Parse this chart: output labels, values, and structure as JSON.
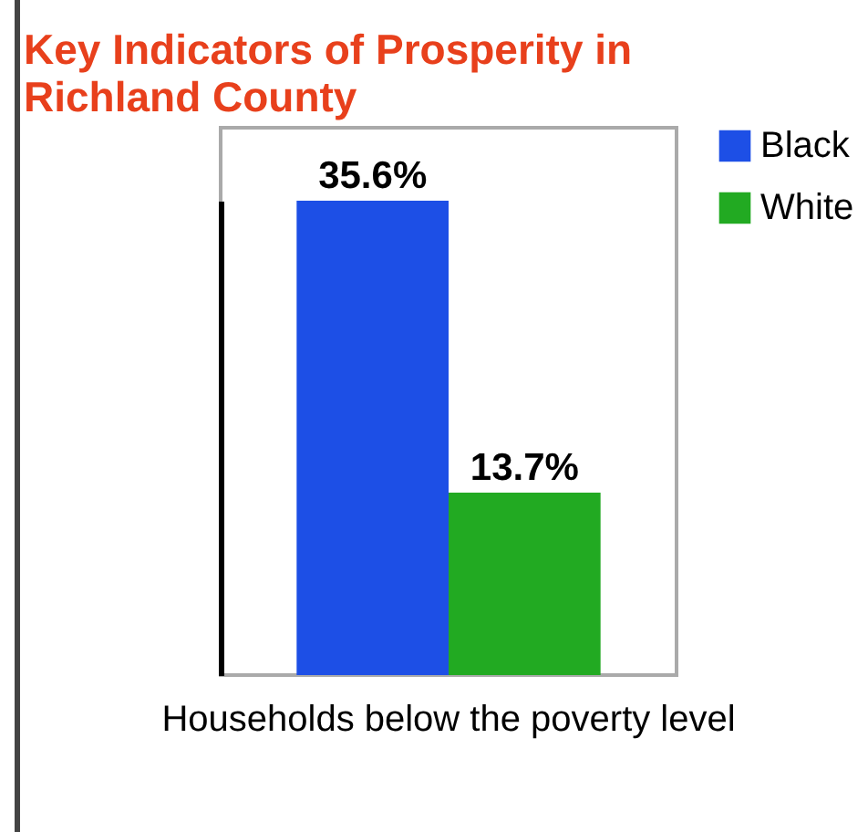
{
  "chart_data": {
    "type": "bar",
    "title": "Key Indicators of Prosperity in Richland County",
    "categories": [
      "Households below the poverty level"
    ],
    "series": [
      {
        "name": "Black",
        "color": "#1d4fe6",
        "values": [
          35.6
        ],
        "value_labels": [
          "35.6%"
        ]
      },
      {
        "name": "White",
        "color": "#22aa22",
        "values": [
          13.7
        ],
        "value_labels": [
          "13.7%"
        ]
      }
    ],
    "legend": "right",
    "grid": false
  }
}
